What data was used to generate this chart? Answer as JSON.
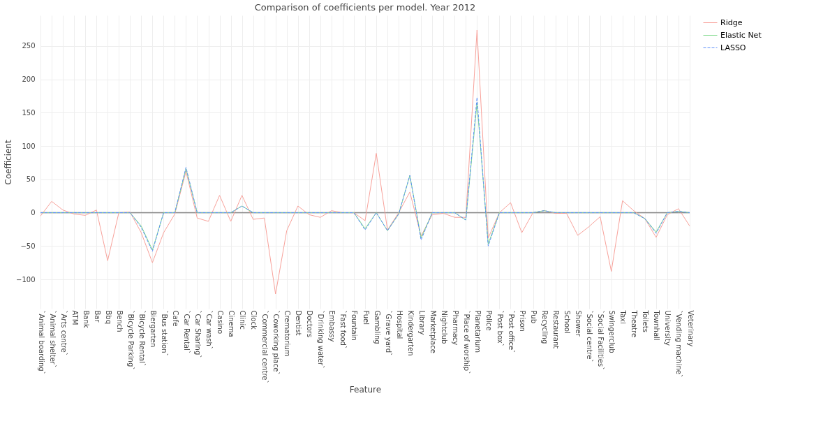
{
  "chart_data": {
    "type": "line",
    "title": "Comparison of coefficients per model. Year 2012",
    "xlabel": "Feature",
    "ylabel": "Coefficient",
    "categories": [
      "`Animal boarding`",
      "`Animal shelter`",
      "`Arts centre`",
      "ATM",
      "Bank",
      "Bar",
      "Bbq",
      "Bench",
      "`Bicycle Parking`",
      "`Bicycle Rental`",
      "Biergarten",
      "`Bus station`",
      "Cafe",
      "`Car Rental`",
      "`Car Sharing`",
      "`Car wash`",
      "Casino",
      "Cinema",
      "Clinic",
      "Clock",
      "`Commercial centre`",
      "`Coworking place`",
      "Crematorium",
      "Dentist",
      "Doctors",
      "`Drinking water`",
      "Embassy",
      "`Fast food`",
      "Fountain",
      "Fuel",
      "Gambling",
      "`Grave yard`",
      "Hospital",
      "Kindergarten",
      "Library",
      "Marketplace",
      "Nightclub",
      "Pharmacy",
      "`Place of worship`",
      "Planetarium",
      "Police",
      "`Post box`",
      "`Post office`",
      "Prison",
      "Pub",
      "Recycling",
      "Restaurant",
      "School",
      "Shower",
      "`Social centre`",
      "`Social Facilities`",
      "Swingerclub",
      "Taxi",
      "Theatre",
      "Toilets",
      "Townhall",
      "University",
      "`Vending machine`",
      "Veterinary"
    ],
    "series": [
      {
        "name": "Ridge",
        "color": "#f8a19a",
        "line_style": "solid",
        "values": [
          -5,
          17,
          4,
          -2,
          -4,
          4,
          -72,
          0,
          1,
          -30,
          -75,
          -30,
          -2,
          62,
          -8,
          -13,
          26,
          -13,
          26,
          -10,
          -8,
          -122,
          -27,
          10,
          -3,
          -7,
          3,
          0,
          0,
          -12,
          89,
          -26,
          0,
          31,
          -35,
          -3,
          -1,
          -7,
          -7,
          274,
          -38,
          0,
          15,
          -30,
          0,
          3,
          -1,
          -1,
          -34,
          -21,
          -6,
          -88,
          18,
          3,
          -9,
          -37,
          -3,
          6,
          -20
        ]
      },
      {
        "name": "Elastic Net",
        "color": "#7fd98c",
        "line_style": "solid",
        "values": [
          0,
          0,
          0,
          0,
          0,
          0,
          0,
          0,
          0,
          -20,
          -56,
          0,
          0,
          66,
          0,
          0,
          0,
          0,
          10,
          0,
          0,
          0,
          0,
          0,
          0,
          0,
          0,
          0,
          0,
          -24,
          0,
          -27,
          -2,
          56,
          -38,
          0,
          0,
          0,
          -11,
          165,
          -47,
          0,
          0,
          0,
          0,
          3,
          0,
          0,
          0,
          0,
          0,
          0,
          0,
          0,
          -9,
          -29,
          0,
          2,
          0
        ]
      },
      {
        "name": "LASSO",
        "color": "#5b8ff9",
        "line_style": "dashed",
        "values": [
          0,
          0,
          0,
          0,
          0,
          0,
          0,
          0,
          0,
          -22,
          -58,
          0,
          0,
          68,
          0,
          0,
          0,
          0,
          10,
          0,
          0,
          0,
          0,
          0,
          0,
          0,
          0,
          0,
          0,
          -26,
          0,
          -27,
          -2,
          56,
          -41,
          0,
          0,
          0,
          -11,
          173,
          -50,
          0,
          0,
          0,
          0,
          3,
          0,
          0,
          0,
          0,
          0,
          0,
          0,
          0,
          -9,
          -31,
          0,
          2,
          0
        ]
      }
    ],
    "ylim": [
      -144,
      296
    ],
    "yticks": [
      {
        "value": -100,
        "label": "−100"
      },
      {
        "value": -50,
        "label": "−50"
      },
      0,
      50,
      100,
      150,
      200,
      250
    ],
    "ref_lines": [
      {
        "axis": "y",
        "value": 0,
        "color": "#8a8a8a"
      }
    ],
    "grid": true,
    "legend": "top right"
  }
}
